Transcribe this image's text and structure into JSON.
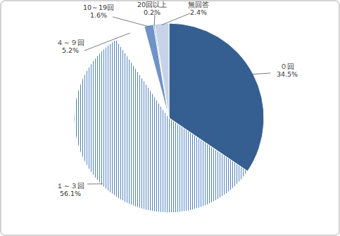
{
  "chart_data": {
    "type": "pie",
    "categories": [
      "０回",
      "１～３回",
      "４～９回",
      "10～19回",
      "20回以上",
      "無回答"
    ],
    "values": [
      34.5,
      56.1,
      5.2,
      1.6,
      0.2,
      2.4
    ],
    "value_labels": [
      "34.5%",
      "56.1%",
      "5.2%",
      "1.6%",
      "0.2%",
      "2.4%"
    ],
    "colors": [
      "#365f91",
      "#4f81bd",
      "#ffffff",
      "#6f93c9",
      "#3f66a0",
      "#c6d3e8"
    ],
    "data_labels": true
  }
}
